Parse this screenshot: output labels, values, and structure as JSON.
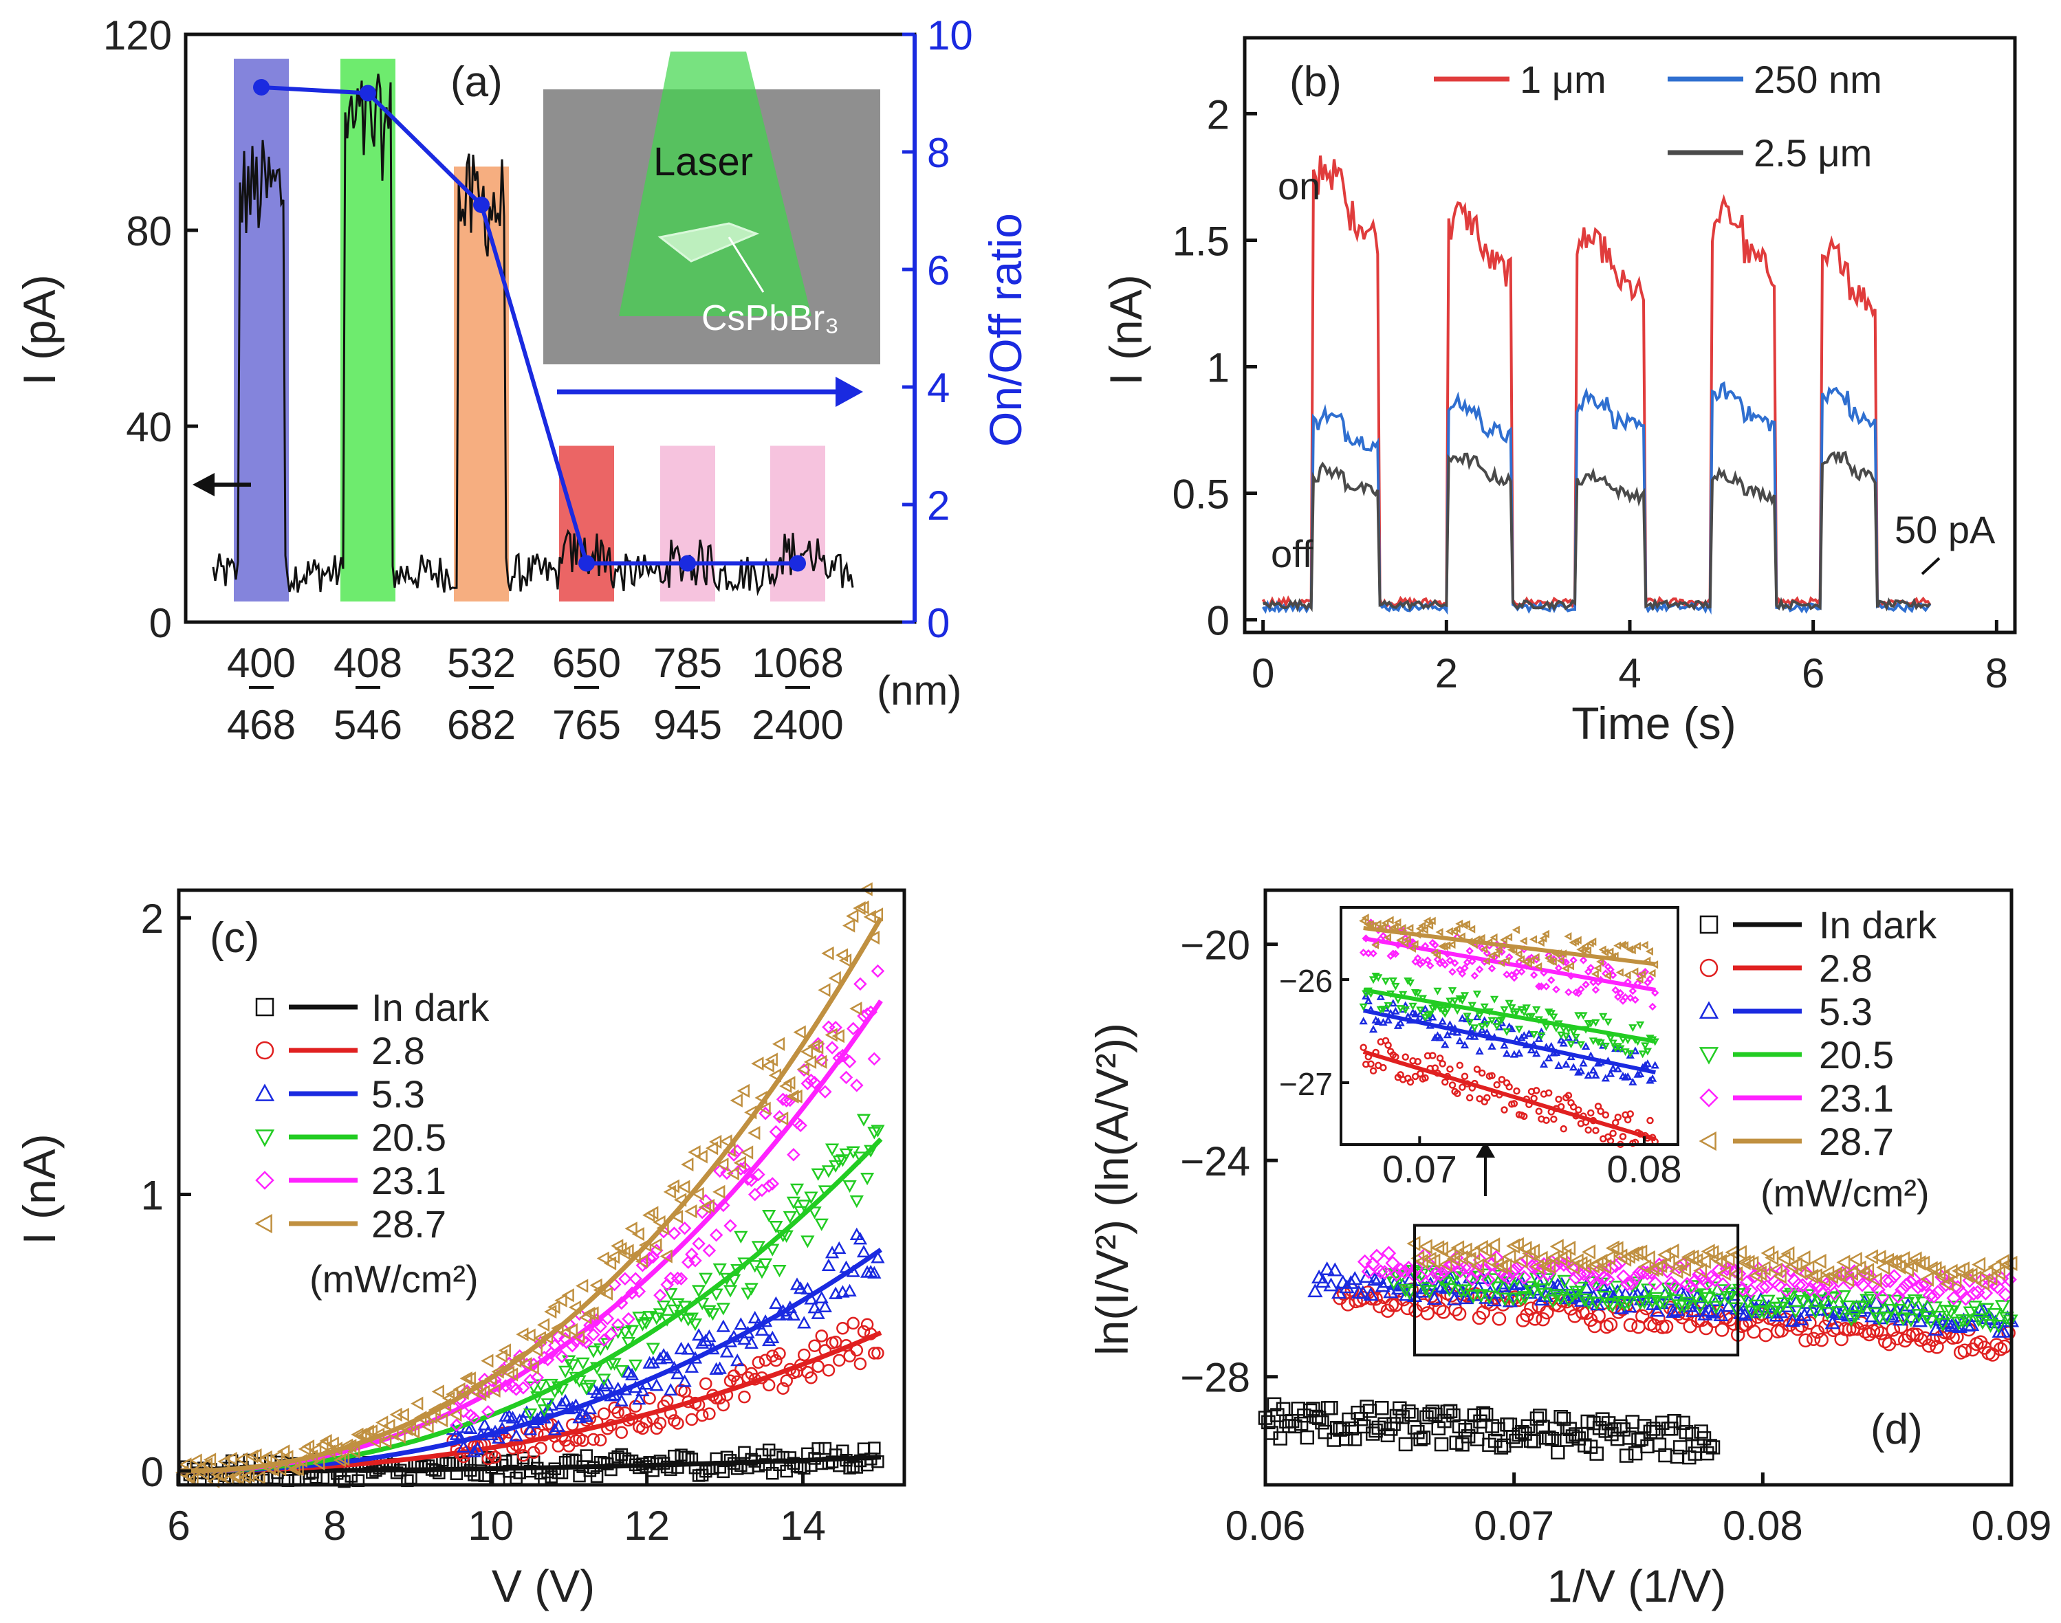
{
  "figure": "CsPbBr3 photodetector measurements",
  "panels": {
    "a": {
      "label": "(a)",
      "ylabel_left": "I (pA)",
      "ylabel_right": "On/Off ratio",
      "unit": "(nm)",
      "inset_laser": "Laser",
      "inset_material": "CsPbBr₃"
    },
    "b": {
      "label": "(b)",
      "ylabel": "I (nA)",
      "xlabel": "Time (s)",
      "on": "on",
      "off": "off",
      "scale_note": "50 pA"
    },
    "c": {
      "label": "(c)",
      "ylabel": "I (nA)",
      "xlabel": "V (V)",
      "units_note": "(mW/cm²)"
    },
    "d": {
      "label": "(d)",
      "ylabel": "ln(I/V²) (ln(A/V²))",
      "xlabel": "1/V (1/V)",
      "units_note": "(mW/cm²)"
    }
  },
  "chart_data": [
    {
      "panel": "a",
      "type": "line",
      "title": "",
      "xlabel": "(nm)",
      "ylabel": "I (pA)",
      "ylabel_right": "On/Off ratio",
      "categories": [
        "400-468",
        "408-546",
        "532-682",
        "650-765",
        "785-945",
        "1068-2400"
      ],
      "category_top": [
        "400",
        "408",
        "532",
        "650",
        "785",
        "1068"
      ],
      "category_bottom": [
        "468",
        "546",
        "682",
        "765",
        "945",
        "2400"
      ],
      "band_colors": [
        "#6f6fd6",
        "#55e855",
        "#f5a06a",
        "#e84a4a",
        "#f5b8d8",
        "#f5b8d8"
      ],
      "band_peak_current_pA": [
        95,
        108,
        92,
        14,
        12,
        14
      ],
      "dark_current_pA": 10,
      "series": [
        {
          "name": "On/Off ratio",
          "axis": "right",
          "color": "#1a2ae0",
          "values": [
            9.1,
            9.0,
            7.1,
            1.0,
            1.0,
            1.0
          ]
        }
      ],
      "ylim": [
        0,
        120
      ],
      "ylim_right": [
        0,
        10
      ],
      "yticks": [
        0,
        40,
        80,
        120
      ],
      "yticks_right": [
        0,
        2,
        4,
        6,
        8,
        10
      ]
    },
    {
      "panel": "b",
      "type": "line",
      "xlabel": "Time (s)",
      "ylabel": "I (nA)",
      "xlim": [
        -0.2,
        8.2
      ],
      "ylim": [
        -0.05,
        2.3
      ],
      "xticks": [
        0,
        2,
        4,
        6,
        8
      ],
      "yticks": [
        0,
        0.5,
        1,
        1.5,
        2
      ],
      "ytick_labels": [
        "0",
        "0.5",
        "1",
        "1.5",
        "2"
      ],
      "on_intervals": [
        [
          0.55,
          1.25
        ],
        [
          2.0,
          2.7
        ],
        [
          3.4,
          4.15
        ],
        [
          4.9,
          5.6
        ],
        [
          6.1,
          6.7
        ]
      ],
      "series": [
        {
          "name": "1 μm",
          "color": "#e03c3c",
          "on_levels": [
            1.72,
            1.55,
            1.45,
            1.55,
            1.4
          ],
          "off_level": 0.07
        },
        {
          "name": "250 nm",
          "color": "#2f6fd0",
          "on_levels": [
            0.78,
            0.82,
            0.85,
            0.87,
            0.87
          ],
          "off_level": 0.05
        },
        {
          "name": "2.5 μm",
          "color": "#4a4a4a",
          "on_levels": [
            0.57,
            0.62,
            0.55,
            0.55,
            0.63
          ],
          "off_level": 0.06
        }
      ]
    },
    {
      "panel": "c",
      "type": "scatter",
      "xlabel": "V (V)",
      "ylabel": "I (nA)",
      "xlim": [
        6,
        15.3
      ],
      "ylim": [
        -0.05,
        2.1
      ],
      "xticks": [
        6,
        8,
        10,
        12,
        14
      ],
      "yticks": [
        0,
        1,
        2
      ],
      "series": [
        {
          "name": "In dark",
          "marker": "square",
          "color": "#111111",
          "i15": 0.05
        },
        {
          "name": "2.8",
          "marker": "circle",
          "color": "#e02020",
          "i15": 0.5
        },
        {
          "name": "5.3",
          "marker": "triangle-up",
          "color": "#1a2ae0",
          "i15": 0.8
        },
        {
          "name": "20.5",
          "marker": "triangle-down",
          "color": "#22cc22",
          "i15": 1.2
        },
        {
          "name": "23.1",
          "marker": "diamond",
          "color": "#ff22ff",
          "i15": 1.7
        },
        {
          "name": "28.7",
          "marker": "triangle-left",
          "color": "#c09040",
          "i15": 2.0
        }
      ]
    },
    {
      "panel": "d",
      "type": "scatter",
      "xlabel": "1/V (1/V)",
      "ylabel": "ln(I/V²) (ln(A/V²))",
      "xlim": [
        0.06,
        0.09
      ],
      "ylim": [
        -30.0,
        -19.0
      ],
      "xticks": [
        0.06,
        0.07,
        0.08,
        0.09
      ],
      "yticks": [
        -28,
        -24,
        -20
      ],
      "ytick_labels": [
        "−28",
        "−24",
        "−20"
      ],
      "series": [
        {
          "name": "In dark",
          "marker": "square",
          "color": "#111111",
          "x_range": [
            0.06,
            0.078
          ],
          "y_start": -28.8,
          "y_end": -29.2
        },
        {
          "name": "2.8",
          "marker": "circle",
          "color": "#e02020",
          "x_range": [
            0.063,
            0.09
          ],
          "y_start": -26.5,
          "y_end": -27.4
        },
        {
          "name": "5.3",
          "marker": "triangle-up",
          "color": "#1a2ae0",
          "x_range": [
            0.062,
            0.09
          ],
          "y_start": -26.2,
          "y_end": -27.0
        },
        {
          "name": "20.5",
          "marker": "triangle-down",
          "color": "#22cc22",
          "x_range": [
            0.065,
            0.09
          ],
          "y_start": -26.2,
          "y_end": -26.9
        },
        {
          "name": "23.1",
          "marker": "diamond",
          "color": "#ff22ff",
          "x_range": [
            0.064,
            0.09
          ],
          "y_start": -25.9,
          "y_end": -26.4
        },
        {
          "name": "28.7",
          "marker": "triangle-left",
          "color": "#c09040",
          "x_range": [
            0.066,
            0.09
          ],
          "y_start": -25.7,
          "y_end": -26.1
        }
      ],
      "inset": {
        "xlim": [
          0.0665,
          0.0815
        ],
        "ylim": [
          -27.6,
          -25.3
        ],
        "xticks": [
          0.07,
          0.08
        ],
        "yticks": [
          -26,
          -27
        ],
        "ytick_labels": [
          "−26",
          "−27"
        ],
        "lines": [
          {
            "name": "2.8",
            "y_start": -26.7,
            "y_end": -27.55
          },
          {
            "name": "5.3",
            "y_start": -26.3,
            "y_end": -26.9
          },
          {
            "name": "20.5",
            "y_start": -26.1,
            "y_end": -26.6
          },
          {
            "name": "23.1",
            "y_start": -25.6,
            "y_end": -26.1
          },
          {
            "name": "28.7",
            "y_start": -25.5,
            "y_end": -25.85
          }
        ]
      }
    }
  ]
}
